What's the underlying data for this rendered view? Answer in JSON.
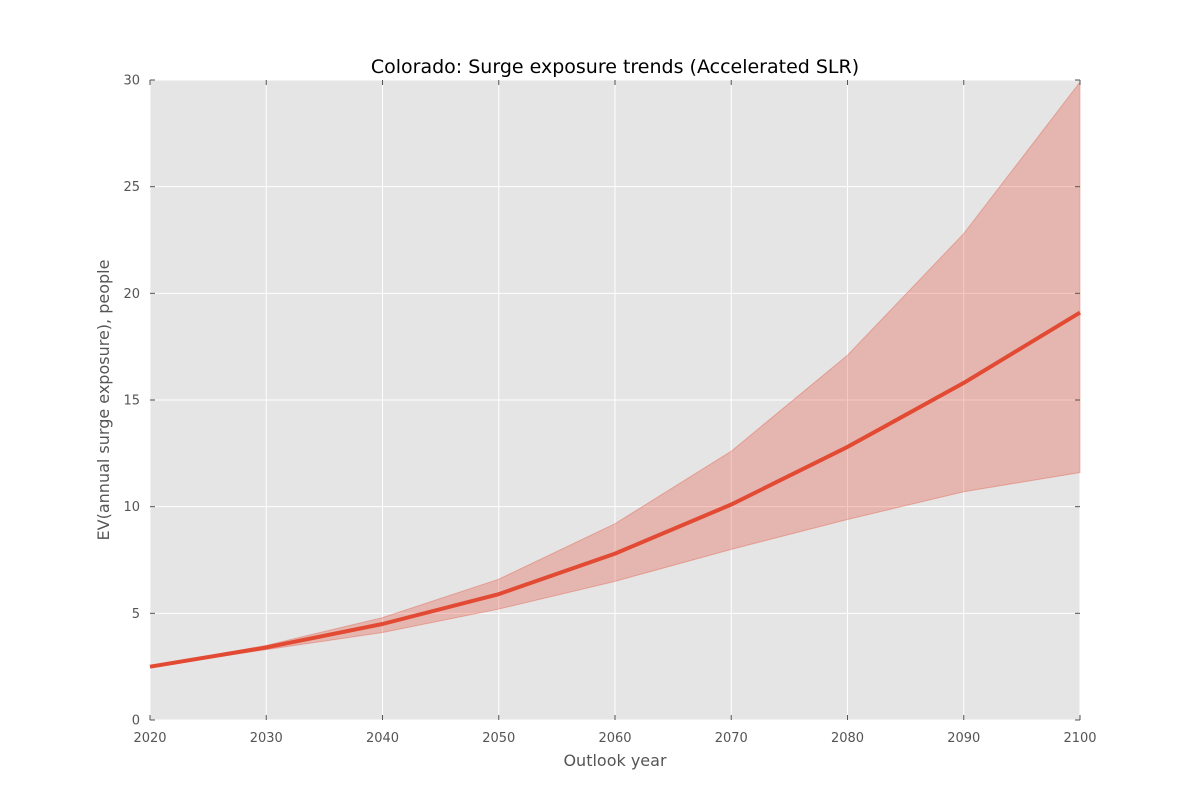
{
  "chart_data": {
    "type": "line",
    "title": "Colorado: Surge exposure trends (Accelerated SLR)",
    "xlabel": "Outlook year",
    "ylabel": "EV(annual surge exposure), people",
    "xlim": [
      2020,
      2100
    ],
    "ylim": [
      0,
      30
    ],
    "xticks": [
      2020,
      2030,
      2040,
      2050,
      2060,
      2070,
      2080,
      2090,
      2100
    ],
    "yticks": [
      0,
      5,
      10,
      15,
      20,
      25,
      30
    ],
    "grid": true,
    "legend": "none",
    "x": [
      2020,
      2030,
      2040,
      2050,
      2060,
      2070,
      2080,
      2090,
      2100
    ],
    "series": [
      {
        "values": [
          2.5,
          3.4,
          4.5,
          5.9,
          7.8,
          10.1,
          12.8,
          15.8,
          19.1
        ],
        "lower": [
          2.5,
          3.3,
          4.1,
          5.2,
          6.5,
          8.0,
          9.4,
          10.7,
          11.6
        ],
        "upper": [
          2.5,
          3.5,
          4.8,
          6.6,
          9.2,
          12.6,
          17.1,
          22.8,
          29.9
        ],
        "color": "#E24A33",
        "band_color": "#E24A33"
      }
    ],
    "colors": {
      "background": "#E5E5E5",
      "grid": "#FFFFFF",
      "tick": "#555555"
    }
  }
}
